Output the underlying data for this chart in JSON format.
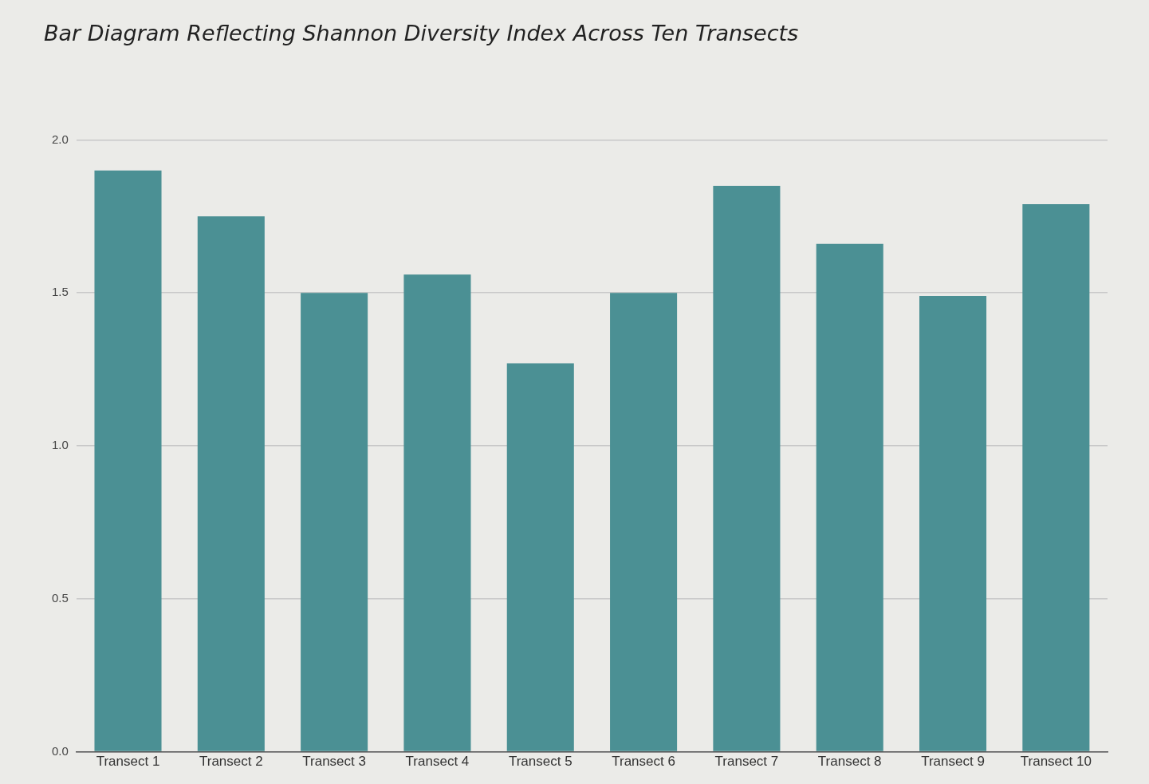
{
  "chart_data": {
    "type": "bar",
    "title": "Bar Diagram Reflecting Shannon Diversity Index Across Ten Transects",
    "categories": [
      "Transect 1",
      "Transect 2",
      "Transect 3",
      "Transect 4",
      "Transect 5",
      "Transect 6",
      "Transect 7",
      "Transect 8",
      "Transect 9",
      "Transect 10"
    ],
    "values": [
      1.9,
      1.75,
      1.5,
      1.56,
      1.27,
      1.5,
      1.85,
      1.66,
      1.49,
      1.79
    ],
    "color": "#4b9094",
    "ylim": [
      0,
      2.0
    ],
    "yticks": [
      {
        "value": 0,
        "label": "0.0"
      },
      {
        "value": 0.5,
        "label": "0.5"
      },
      {
        "value": 1,
        "label": "1.0"
      },
      {
        "value": 1.5,
        "label": "1.5"
      },
      {
        "value": 2,
        "label": "2.0"
      }
    ],
    "grid": "y",
    "legend": false
  }
}
